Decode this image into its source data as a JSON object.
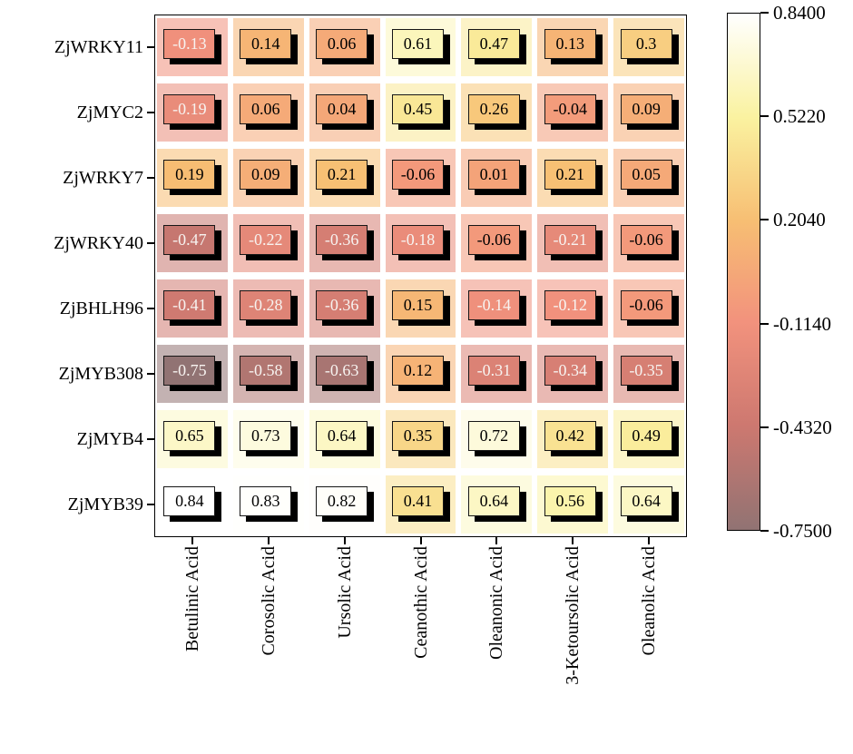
{
  "figure": {
    "background": "#ffffff",
    "frame_color": "#000000"
  },
  "chart_data": {
    "type": "heatmap",
    "title": "",
    "xlabel": "",
    "ylabel": "",
    "rows": [
      "ZjWRKY11",
      "ZjMYC2",
      "ZjWRKY7",
      "ZjWRKY40",
      "ZjBHLH96",
      "ZjMYB308",
      "ZjMYB4",
      "ZjMYB39"
    ],
    "categories": [
      "Betulinic Acid",
      "Corosolic Acid",
      "Ursolic Acid",
      "Ceanothic Acid",
      "Oleanonic Acid",
      "3-Ketoursolic Acid",
      "Oleanolic Acid"
    ],
    "values": [
      [
        -0.13,
        0.14,
        0.06,
        0.61,
        0.47,
        0.13,
        0.3
      ],
      [
        -0.19,
        0.06,
        0.04,
        0.45,
        0.26,
        -0.04,
        0.09
      ],
      [
        0.19,
        0.09,
        0.21,
        -0.06,
        0.01,
        0.21,
        0.05
      ],
      [
        -0.47,
        -0.22,
        -0.36,
        -0.18,
        -0.06,
        -0.21,
        -0.06
      ],
      [
        -0.41,
        -0.28,
        -0.36,
        0.15,
        -0.14,
        -0.12,
        -0.06
      ],
      [
        -0.75,
        -0.58,
        -0.63,
        0.12,
        -0.31,
        -0.34,
        -0.35
      ],
      [
        0.65,
        0.73,
        0.64,
        0.35,
        0.72,
        0.42,
        0.49
      ],
      [
        0.84,
        0.83,
        0.82,
        0.41,
        0.64,
        0.56,
        0.64
      ]
    ],
    "value_labels_shown": true,
    "legend_position": "right",
    "grid": false,
    "colorbar": {
      "min": -0.75,
      "max": 0.84,
      "tick_labels": [
        "0.8400",
        "0.5220",
        "0.2040",
        "-0.1140",
        "-0.4320",
        "-0.7500"
      ]
    },
    "colormap_stops": [
      {
        "value": 0.84,
        "color": "#ffffff"
      },
      {
        "value": 0.52,
        "color": "#faf2a0"
      },
      {
        "value": 0.2,
        "color": "#f7be73"
      },
      {
        "value": -0.11,
        "color": "#f2927d"
      },
      {
        "value": -0.43,
        "color": "#cd7870"
      },
      {
        "value": -0.75,
        "color": "#917373"
      }
    ],
    "cell_text_dark": "#000000",
    "cell_text_light": "#f7f3f0",
    "cell_shadow_color": "#000000"
  }
}
